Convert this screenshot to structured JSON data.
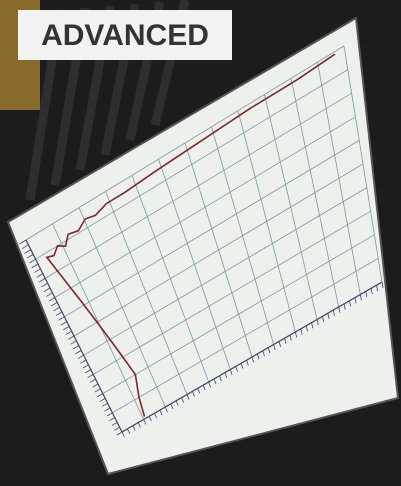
{
  "badge": {
    "label": "ADVANCED"
  }
}
